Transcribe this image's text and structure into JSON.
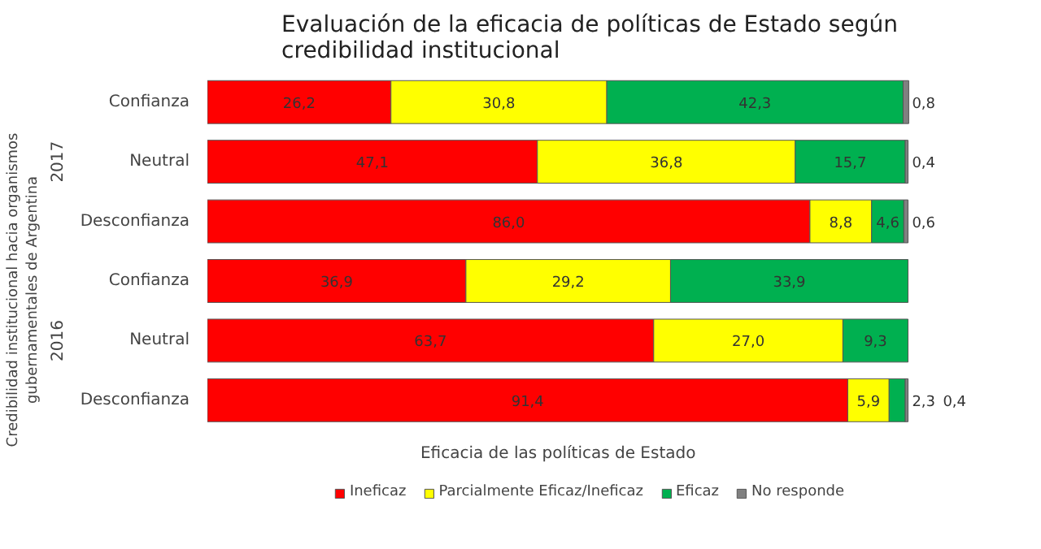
{
  "chart_data": {
    "type": "bar",
    "orientation": "horizontal",
    "stacked": true,
    "legend": "bottom",
    "grid": false,
    "title": "Evaluación de la eficacia de políticas de Estado según credibilidad institucional",
    "xlabel": "Eficacia de las políticas de Estado",
    "ylabel": "Credibilidad institucional hacia organismos gubernamentales de Argentina",
    "annotations": [
      "2017",
      "2016"
    ],
    "categories": [
      "Confianza",
      "Neutral",
      "Desconfianza",
      "Confianza",
      "Neutral",
      "Desconfianza"
    ],
    "series": [
      {
        "name": "Ineficaz",
        "color": "#ff0000",
        "values": [
          26.2,
          47.1,
          86.0,
          36.9,
          63.7,
          91.4
        ],
        "value_labels": [
          "26,2",
          "47,1",
          "86,0",
          "36,9",
          "63,7",
          "91,4"
        ]
      },
      {
        "name": "Parcialmente Eficaz/Ineficaz",
        "color": "#ffff00",
        "values": [
          30.8,
          36.8,
          8.8,
          29.2,
          27.0,
          5.9
        ],
        "value_labels": [
          "30,8",
          "36,8",
          "8,8",
          "29,2",
          "27,0",
          "5,9"
        ]
      },
      {
        "name": "Eficaz",
        "color": "#00b050",
        "values": [
          42.3,
          15.7,
          4.6,
          33.9,
          9.3,
          2.3
        ],
        "value_labels": [
          "42,3",
          "15,7",
          "4,6",
          "33,9",
          "9,3",
          "2,3"
        ]
      },
      {
        "name": "No responde",
        "color": "#808080",
        "values": [
          0.8,
          0.4,
          0.6,
          null,
          null,
          0.4
        ],
        "value_labels": [
          "0,8",
          "0,4",
          "0,6",
          null,
          null,
          "0,4"
        ]
      }
    ]
  }
}
